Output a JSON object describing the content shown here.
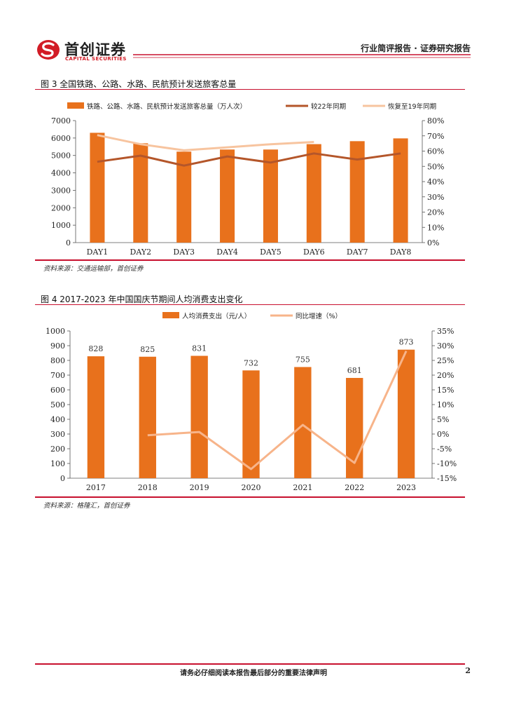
{
  "header": {
    "logo_cn": "首创证券",
    "logo_en": "CAPITAL SECURITIES",
    "report_type": "行业简评报告 · 证券研究报告",
    "brand_color": "#d21c26"
  },
  "figure3": {
    "title": "图 3 全国铁路、公路、水路、民航预计发送旅客总量",
    "source": "资料来源：交通运输部，首创证券"
  },
  "figure4": {
    "title": "图 4 2017-2023 年中国国庆节期间人均消费支出变化",
    "source": "资料来源：格隆汇，首创证券"
  },
  "footer": {
    "disclaimer": "请务必仔细阅读本报告最后部分的重要法律声明",
    "page": "2"
  },
  "chart_data": [
    {
      "type": "bar",
      "title": "全国铁路、公路、水路、民航预计发送旅客总量",
      "categories": [
        "DAY1",
        "DAY2",
        "DAY3",
        "DAY4",
        "DAY5",
        "DAY6",
        "DAY7",
        "DAY8"
      ],
      "series": [
        {
          "name": "铁路、公路、水路、民航预计发送旅客总量（万人次）",
          "kind": "bar",
          "axis": "left",
          "color": "#e8711c",
          "values": [
            6300,
            5700,
            5220,
            5340,
            5340,
            5650,
            5820,
            5980
          ]
        },
        {
          "name": "较22年同期",
          "kind": "line",
          "axis": "right",
          "color": "#b4562a",
          "values": [
            0.53,
            0.57,
            0.505,
            0.565,
            0.525,
            0.585,
            0.545,
            0.585
          ]
        },
        {
          "name": "恢复至19年同期",
          "kind": "line",
          "axis": "right",
          "color": "#f7c49f",
          "values": [
            0.705,
            0.645,
            0.605,
            0.625,
            0.645,
            0.66,
            null,
            null
          ]
        }
      ],
      "y_left": {
        "min": 0,
        "max": 7000,
        "ticks": [
          "0",
          "1000",
          "2000",
          "3000",
          "4000",
          "5000",
          "6000",
          "7000"
        ]
      },
      "y_right": {
        "min": 0,
        "max": 0.8,
        "ticks": [
          "0%",
          "10%",
          "20%",
          "30%",
          "40%",
          "50%",
          "60%",
          "70%",
          "80%"
        ]
      },
      "legend": "top"
    },
    {
      "type": "bar",
      "title": "2017-2023 年中国国庆节期间人均消费支出变化",
      "categories": [
        "2017",
        "2018",
        "2019",
        "2020",
        "2021",
        "2022",
        "2023"
      ],
      "series": [
        {
          "name": "人均消费支出（元/人）",
          "kind": "bar",
          "axis": "left",
          "color": "#e8711c",
          "values": [
            828,
            825,
            831,
            732,
            755,
            681,
            873
          ],
          "labels": [
            "828",
            "825",
            "831",
            "732",
            "755",
            "681",
            "873"
          ]
        },
        {
          "name": "同比增速（%）",
          "kind": "line",
          "axis": "right",
          "color": "#f7b48a",
          "values": [
            null,
            -0.004,
            0.007,
            -0.119,
            0.031,
            -0.098,
            0.282
          ]
        }
      ],
      "y_left": {
        "min": 0,
        "max": 1000,
        "ticks": [
          "0",
          "100",
          "200",
          "300",
          "400",
          "500",
          "600",
          "700",
          "800",
          "900",
          "1000"
        ]
      },
      "y_right": {
        "min": -0.15,
        "max": 0.35,
        "ticks": [
          "-15%",
          "-10%",
          "-5%",
          "0%",
          "5%",
          "10%",
          "15%",
          "20%",
          "25%",
          "30%",
          "35%"
        ]
      },
      "legend": "top"
    }
  ]
}
